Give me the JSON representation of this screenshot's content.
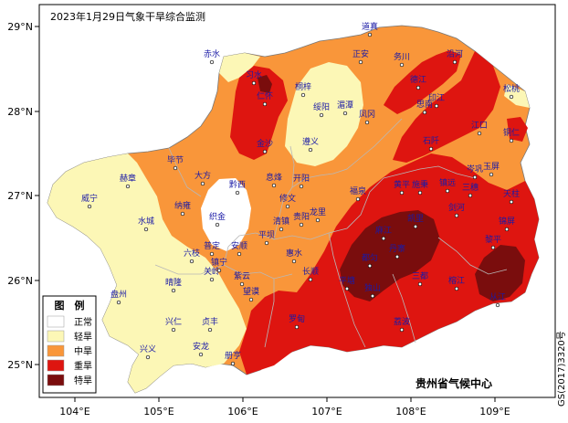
{
  "title": "2023年1月29日气象干旱综合监测",
  "credit": "贵州省气候中心",
  "map_number": "GS(2017)3320号",
  "axes": {
    "x_ticks": [
      "104°E",
      "105°E",
      "106°E",
      "107°E",
      "108°E",
      "109°E"
    ],
    "y_ticks": [
      "29°N",
      "28°N",
      "27°N",
      "26°N",
      "25°N"
    ]
  },
  "legend": {
    "title": "图　例",
    "items": [
      {
        "label": "正常",
        "color": "#ffffff"
      },
      {
        "label": "轻旱",
        "color": "#fcf7b6"
      },
      {
        "label": "中旱",
        "color": "#f9963a"
      },
      {
        "label": "重旱",
        "color": "#de1510"
      },
      {
        "label": "特旱",
        "color": "#7a0d0d"
      }
    ]
  },
  "cities": [
    "赤水",
    "习水",
    "桐梓",
    "道真",
    "正安",
    "务川",
    "沿河",
    "湄潭",
    "绥阳",
    "凤冈",
    "德江",
    "印江",
    "思南",
    "松桃",
    "仁怀",
    "遵义",
    "江口",
    "铜仁",
    "毕节",
    "大方",
    "黔西",
    "金沙",
    "息烽",
    "开阳",
    "石阡",
    "岑巩",
    "玉屏",
    "赫章",
    "纳雍",
    "织金",
    "修文",
    "贵阳",
    "龙里",
    "福泉",
    "黄平",
    "施秉",
    "镇远",
    "三穗",
    "天柱",
    "威宁",
    "水城",
    "六枝",
    "普定",
    "安顺",
    "平坝",
    "清镇",
    "惠水",
    "都匀",
    "凯里",
    "麻江",
    "丹寨",
    "剑河",
    "锦屏",
    "盘州",
    "晴隆",
    "关岭",
    "镇宁",
    "紫云",
    "长顺",
    "罗甸",
    "平塘",
    "独山",
    "三都",
    "榕江",
    "从江",
    "黎平",
    "兴仁",
    "贞丰",
    "望谟",
    "兴义",
    "安龙",
    "册亨",
    "荔波"
  ]
}
